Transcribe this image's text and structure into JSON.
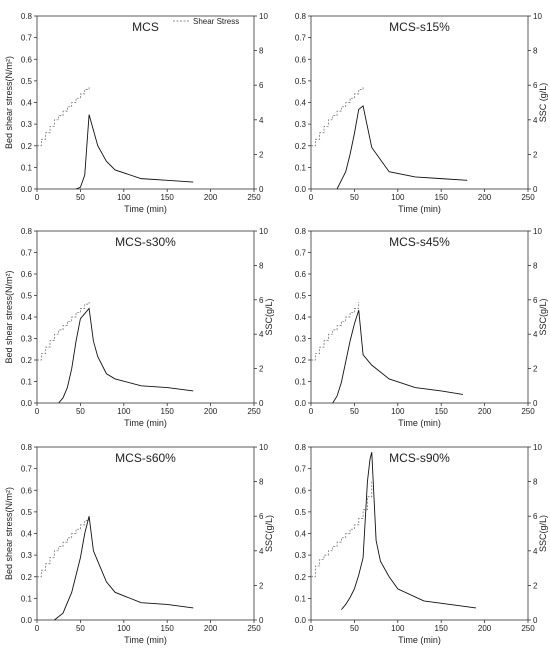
{
  "figure": {
    "legend_label": "Shear Stress",
    "x_label": "Time (min)",
    "left_y_label": "Bed shear stress(N/m²)",
    "right_y_labels": [
      "SSC (g/L)",
      "SSC (g/L)",
      "SSC(g/L)",
      "SSC(g/L)",
      "SSC(g/L)",
      "SSC(g/L)"
    ]
  },
  "chart_data": [
    {
      "type": "line",
      "title": "MCS",
      "xlabel": "Time (min)",
      "ylabel_left": "Bed shear stress(N/m²)",
      "ylabel_right": "",
      "xlim": [
        0,
        250
      ],
      "ylim_left": [
        0,
        0.8
      ],
      "ylim_right": [
        0,
        10
      ],
      "xticks": [
        "0",
        "50",
        "100",
        "150",
        "200",
        "250"
      ],
      "yticks_left": [
        "0.0",
        "0.1",
        "0.2",
        "0.3",
        "0.4",
        "0.5",
        "0.6",
        "0.7",
        "0.8"
      ],
      "yticks_right": [
        "0",
        "2",
        "4",
        "6",
        "8",
        "10"
      ],
      "legend": "top-right",
      "series": [
        {
          "name": "Shear Stress",
          "axis": "left",
          "style": "dashed-step",
          "x": [
            0,
            5,
            10,
            15,
            20,
            25,
            30,
            35,
            40,
            45,
            50,
            55,
            60
          ],
          "y": [
            0.2,
            0.23,
            0.26,
            0.29,
            0.32,
            0.34,
            0.36,
            0.38,
            0.4,
            0.42,
            0.44,
            0.46,
            0.47
          ]
        },
        {
          "axis": "right",
          "style": "solid",
          "x": [
            45,
            50,
            55,
            60,
            70,
            80,
            90,
            120,
            150,
            180
          ],
          "y": [
            0,
            0.1,
            0.8,
            4.3,
            2.5,
            1.6,
            1.1,
            0.6,
            0.5,
            0.4
          ]
        }
      ]
    },
    {
      "type": "line",
      "title": "MCS-s15%",
      "xlabel": "Time (min)",
      "ylabel_left": "",
      "ylabel_right": "SSC (g/L)",
      "xlim": [
        0,
        250
      ],
      "ylim_left": [
        0,
        0.8
      ],
      "ylim_right": [
        0,
        10
      ],
      "xticks": [
        "0",
        "50",
        "100",
        "150",
        "200",
        "250"
      ],
      "yticks_left": [
        "0.0",
        "0.1",
        "0.2",
        "0.3",
        "0.4",
        "0.5",
        "0.6",
        "0.7",
        "0.8"
      ],
      "yticks_right": [
        "0",
        "2",
        "4",
        "6",
        "8",
        "10"
      ],
      "series": [
        {
          "axis": "left",
          "style": "dashed-step",
          "x": [
            0,
            5,
            10,
            15,
            20,
            25,
            30,
            35,
            40,
            45,
            50,
            55,
            60
          ],
          "y": [
            0.2,
            0.23,
            0.26,
            0.29,
            0.32,
            0.34,
            0.36,
            0.38,
            0.4,
            0.42,
            0.44,
            0.46,
            0.47
          ]
        },
        {
          "axis": "right",
          "style": "solid",
          "x": [
            30,
            35,
            40,
            45,
            50,
            55,
            60,
            70,
            80,
            90,
            120,
            150,
            180
          ],
          "y": [
            0,
            0.5,
            1.0,
            2.0,
            3.2,
            4.6,
            4.8,
            2.4,
            1.7,
            1.0,
            0.7,
            0.6,
            0.5
          ]
        }
      ]
    },
    {
      "type": "line",
      "title": "MCS-s30%",
      "xlabel": "Time (min)",
      "ylabel_left": "Bed shear stress(N/m²)",
      "ylabel_right": "SSC(g/L)",
      "xlim": [
        0,
        250
      ],
      "ylim_left": [
        0,
        0.8
      ],
      "ylim_right": [
        0,
        10
      ],
      "xticks": [
        "0",
        "50",
        "100",
        "150",
        "200",
        "250"
      ],
      "yticks_left": [
        "0.0",
        "0.1",
        "0.2",
        "0.3",
        "0.4",
        "0.5",
        "0.6",
        "0.7",
        "0.8"
      ],
      "yticks_right": [
        "0",
        "2",
        "4",
        "6",
        "8",
        "10"
      ],
      "series": [
        {
          "axis": "left",
          "style": "dashed-step",
          "x": [
            0,
            5,
            10,
            15,
            20,
            25,
            30,
            35,
            40,
            45,
            50,
            55,
            60
          ],
          "y": [
            0.2,
            0.23,
            0.26,
            0.29,
            0.32,
            0.34,
            0.36,
            0.38,
            0.4,
            0.42,
            0.44,
            0.46,
            0.47
          ]
        },
        {
          "axis": "right",
          "style": "solid",
          "x": [
            25,
            30,
            35,
            40,
            45,
            50,
            55,
            60,
            65,
            70,
            80,
            90,
            120,
            150,
            180
          ],
          "y": [
            0,
            0.3,
            0.9,
            2.0,
            3.6,
            4.9,
            5.2,
            5.5,
            3.6,
            2.7,
            1.7,
            1.4,
            1.0,
            0.9,
            0.7
          ]
        }
      ]
    },
    {
      "type": "line",
      "title": "MCS-s45%",
      "xlabel": "Time (min)",
      "ylabel_left": "",
      "ylabel_right": "SSC(g/L)",
      "xlim": [
        0,
        250
      ],
      "ylim_left": [
        0,
        0.8
      ],
      "ylim_right": [
        0,
        10
      ],
      "xticks": [
        "0",
        "50",
        "100",
        "150",
        "200",
        "250"
      ],
      "yticks_left": [
        "0.0",
        "0.1",
        "0.2",
        "0.3",
        "0.4",
        "0.5",
        "0.6",
        "0.7",
        "0.8"
      ],
      "yticks_right": [
        "0",
        "2",
        "4",
        "6",
        "8",
        "10"
      ],
      "series": [
        {
          "axis": "left",
          "style": "dashed-step",
          "x": [
            0,
            5,
            10,
            15,
            20,
            25,
            30,
            35,
            40,
            45,
            50,
            55
          ],
          "y": [
            0.2,
            0.23,
            0.26,
            0.29,
            0.32,
            0.34,
            0.36,
            0.38,
            0.4,
            0.42,
            0.44,
            0.47
          ]
        },
        {
          "axis": "right",
          "style": "solid",
          "x": [
            25,
            30,
            35,
            40,
            45,
            50,
            55,
            60,
            70,
            80,
            90,
            120,
            150,
            175
          ],
          "y": [
            0,
            0.4,
            1.2,
            2.4,
            3.6,
            4.6,
            5.4,
            2.8,
            2.2,
            1.8,
            1.4,
            0.9,
            0.7,
            0.5
          ]
        }
      ]
    },
    {
      "type": "line",
      "title": "MCS-s60%",
      "xlabel": "Time (min)",
      "ylabel_left": "Bed shear stress(N/m²)",
      "ylabel_right": "SSC(g/L)",
      "xlim": [
        0,
        250
      ],
      "ylim_left": [
        0,
        0.8
      ],
      "ylim_right": [
        0,
        10
      ],
      "xticks": [
        "0",
        "50",
        "100",
        "150",
        "200",
        "250"
      ],
      "yticks_left": [
        "0.0",
        "0.1",
        "0.2",
        "0.3",
        "0.4",
        "0.5",
        "0.6",
        "0.7",
        "0.8"
      ],
      "yticks_right": [
        "0",
        "2",
        "4",
        "6",
        "8",
        "10"
      ],
      "series": [
        {
          "axis": "left",
          "style": "dashed-step",
          "x": [
            0,
            5,
            10,
            15,
            20,
            25,
            30,
            35,
            40,
            45,
            50,
            55,
            60
          ],
          "y": [
            0.2,
            0.23,
            0.26,
            0.29,
            0.32,
            0.34,
            0.36,
            0.38,
            0.4,
            0.42,
            0.44,
            0.46,
            0.48
          ]
        },
        {
          "axis": "right",
          "style": "solid",
          "x": [
            20,
            30,
            40,
            50,
            55,
            60,
            65,
            70,
            80,
            90,
            120,
            150,
            180
          ],
          "y": [
            0,
            0.4,
            1.6,
            3.6,
            5.0,
            6.0,
            4.0,
            3.4,
            2.2,
            1.6,
            1.0,
            0.9,
            0.7
          ]
        }
      ]
    },
    {
      "type": "line",
      "title": "MCS-s90%",
      "xlabel": "Time (min)",
      "ylabel_left": "",
      "ylabel_right": "SSC(g/L)",
      "xlim": [
        0,
        250
      ],
      "ylim_left": [
        0,
        0.8
      ],
      "ylim_right": [
        0,
        10
      ],
      "xticks": [
        "0",
        "50",
        "100",
        "150",
        "200",
        "250"
      ],
      "yticks_left": [
        "0.0",
        "0.1",
        "0.2",
        "0.3",
        "0.4",
        "0.5",
        "0.6",
        "0.7",
        "0.8"
      ],
      "yticks_right": [
        "0",
        "2",
        "4",
        "6",
        "8",
        "10"
      ],
      "series": [
        {
          "axis": "left",
          "style": "dashed-step",
          "x": [
            0,
            5,
            10,
            15,
            20,
            25,
            30,
            35,
            40,
            45,
            50,
            55,
            60,
            65,
            70
          ],
          "y": [
            0.2,
            0.25,
            0.28,
            0.3,
            0.32,
            0.34,
            0.36,
            0.38,
            0.4,
            0.42,
            0.44,
            0.47,
            0.51,
            0.57,
            0.64
          ]
        },
        {
          "axis": "right",
          "style": "solid",
          "x": [
            35,
            40,
            45,
            50,
            55,
            60,
            65,
            68,
            70,
            75,
            80,
            90,
            100,
            130,
            160,
            190
          ],
          "y": [
            0.6,
            0.9,
            1.3,
            1.8,
            2.6,
            3.6,
            8.0,
            9.3,
            9.7,
            4.6,
            3.4,
            2.5,
            1.8,
            1.1,
            0.9,
            0.7
          ]
        }
      ]
    }
  ]
}
